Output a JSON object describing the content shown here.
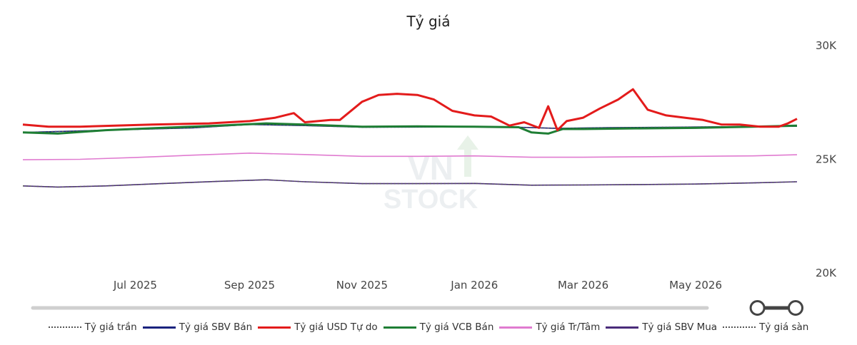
{
  "chart_data": {
    "type": "line",
    "title": "Tỷ giá",
    "y_ticks": [
      "30K",
      "25K",
      "20K"
    ],
    "y_tick_values": [
      30000,
      25000,
      20000
    ],
    "ylim": [
      20000,
      30000
    ],
    "y_axis_side": "right",
    "x_tick_labels": [
      "Jul 2025",
      "Sep 2025",
      "Nov 2025",
      "Jan 2026",
      "Mar 2026",
      "May 2026"
    ],
    "x_tick_dates": [
      "2025-07-01",
      "2025-09-01",
      "2025-11-01",
      "2026-01-01",
      "2026-03-01",
      "2026-05-01"
    ],
    "xlim": [
      "2025-05-01",
      "2026-06-25"
    ],
    "legend_position": "bottom",
    "grid": false,
    "range_slider": {
      "start": 0.95,
      "end": 1.0
    },
    "watermark": "VN STOCK",
    "series": [
      {
        "name": "Tỷ giá trần",
        "color": "#555555",
        "style": "dotted",
        "x": [
          "2025-05-01",
          "2025-06-15",
          "2025-08-01",
          "2025-09-01",
          "2025-10-01",
          "2025-11-01",
          "2025-12-15",
          "2026-01-15",
          "2026-02-15",
          "2026-03-15",
          "2026-04-15",
          "2026-05-15",
          "2026-06-25"
        ],
        "y": [
          26150,
          26250,
          26350,
          26500,
          26450,
          26380,
          26390,
          26400,
          26330,
          26360,
          26380,
          26400,
          26420
        ]
      },
      {
        "name": "Tỷ giá SBV Bán",
        "color": "#1a237e",
        "style": "solid",
        "x": [
          "2025-05-01",
          "2025-06-15",
          "2025-08-01",
          "2025-09-01",
          "2025-10-01",
          "2025-11-01",
          "2025-12-15",
          "2026-01-15",
          "2026-02-15",
          "2026-03-15",
          "2026-04-15",
          "2026-05-15",
          "2026-06-25"
        ],
        "y": [
          26150,
          26250,
          26350,
          26500,
          26450,
          26380,
          26390,
          26400,
          26330,
          26360,
          26380,
          26400,
          26420
        ]
      },
      {
        "name": "Tỷ giá USD Tự do",
        "color": "#e31b1b",
        "style": "solid",
        "x": [
          "2025-05-01",
          "2025-05-15",
          "2025-06-01",
          "2025-06-20",
          "2025-07-10",
          "2025-08-10",
          "2025-09-01",
          "2025-09-15",
          "2025-09-25",
          "2025-10-01",
          "2025-10-15",
          "2025-10-20",
          "2025-11-01",
          "2025-11-10",
          "2025-11-20",
          "2025-12-01",
          "2025-12-10",
          "2025-12-20",
          "2026-01-01",
          "2026-01-10",
          "2026-01-20",
          "2026-01-28",
          "2026-02-05",
          "2026-02-10",
          "2026-02-15",
          "2026-02-20",
          "2026-03-01",
          "2026-03-10",
          "2026-03-20",
          "2026-03-28",
          "2026-04-05",
          "2026-04-15",
          "2026-04-25",
          "2026-05-05",
          "2026-05-15",
          "2026-05-25",
          "2026-06-05",
          "2026-06-15",
          "2026-06-20",
          "2026-06-25"
        ],
        "y": [
          26500,
          26400,
          26400,
          26450,
          26500,
          26550,
          26650,
          26800,
          27000,
          26600,
          26700,
          26700,
          27500,
          27800,
          27850,
          27800,
          27600,
          27100,
          26900,
          26850,
          26450,
          26600,
          26350,
          27300,
          26250,
          26650,
          26800,
          27200,
          27600,
          28050,
          27150,
          26900,
          26800,
          26700,
          26500,
          26500,
          26400,
          26400,
          26550,
          26750
        ]
      },
      {
        "name": "Tỷ giá VCB Bán",
        "color": "#1e7e34",
        "style": "solid",
        "x": [
          "2025-05-01",
          "2025-05-20",
          "2025-06-15",
          "2025-07-15",
          "2025-08-15",
          "2025-09-10",
          "2025-10-01",
          "2025-11-01",
          "2025-12-01",
          "2026-01-01",
          "2026-01-25",
          "2026-02-01",
          "2026-02-10",
          "2026-02-18",
          "2026-03-01",
          "2026-04-01",
          "2026-05-01",
          "2026-06-01",
          "2026-06-25"
        ],
        "y": [
          26150,
          26100,
          26250,
          26350,
          26450,
          26550,
          26500,
          26400,
          26420,
          26400,
          26380,
          26150,
          26100,
          26300,
          26300,
          26330,
          26350,
          26400,
          26450
        ]
      },
      {
        "name": "Tỷ giá Tr/Tâm",
        "color": "#e07bd0",
        "style": "solid",
        "x": [
          "2025-05-01",
          "2025-06-01",
          "2025-07-01",
          "2025-08-01",
          "2025-09-01",
          "2025-10-01",
          "2025-11-01",
          "2025-12-01",
          "2026-01-01",
          "2026-02-01",
          "2026-03-01",
          "2026-04-01",
          "2026-05-01",
          "2026-06-01",
          "2026-06-25"
        ],
        "y": [
          24950,
          24970,
          25050,
          25150,
          25240,
          25180,
          25100,
          25100,
          25120,
          25060,
          25060,
          25080,
          25100,
          25120,
          25170
        ]
      },
      {
        "name": "Tỷ giá SBV Mua",
        "color": "#4a2c7a",
        "style": "solid",
        "x": [
          "2025-05-01",
          "2025-05-20",
          "2025-06-15",
          "2025-07-15",
          "2025-08-15",
          "2025-09-10",
          "2025-10-01",
          "2025-11-01",
          "2025-12-01",
          "2026-01-01",
          "2026-02-01",
          "2026-03-01",
          "2026-04-01",
          "2026-05-01",
          "2026-06-01",
          "2026-06-25"
        ],
        "y": [
          23800,
          23750,
          23800,
          23900,
          24000,
          24070,
          23980,
          23900,
          23900,
          23910,
          23830,
          23840,
          23860,
          23880,
          23930,
          23980
        ]
      },
      {
        "name": "Tỷ giá sàn",
        "color": "#555555",
        "style": "dotted",
        "x": [
          "2025-05-01",
          "2025-05-20",
          "2025-06-15",
          "2025-07-15",
          "2025-08-15",
          "2025-09-10",
          "2025-10-01",
          "2025-11-01",
          "2025-12-01",
          "2026-01-01",
          "2026-02-01",
          "2026-03-01",
          "2026-04-01",
          "2026-05-01",
          "2026-06-01",
          "2026-06-25"
        ],
        "y": [
          23800,
          23750,
          23800,
          23900,
          24000,
          24070,
          23980,
          23900,
          23900,
          23910,
          23830,
          23840,
          23860,
          23880,
          23930,
          23980
        ]
      }
    ]
  },
  "legend_order": [
    0,
    1,
    2,
    3,
    4,
    5,
    6
  ]
}
